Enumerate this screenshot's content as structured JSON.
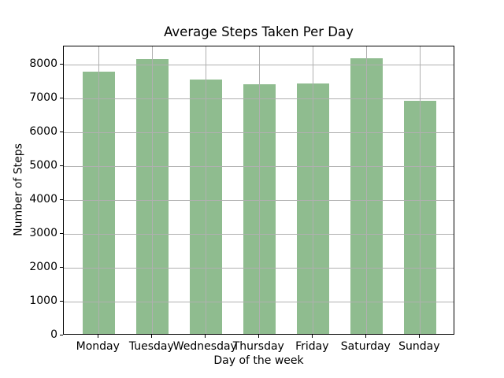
{
  "chart_data": {
    "type": "bar",
    "title": "Average Steps Taken Per Day",
    "xlabel": "Day of the week",
    "ylabel": "Number of Steps",
    "categories": [
      "Monday",
      "Tuesday",
      "Wednesday",
      "Thursday",
      "Friday",
      "Saturday",
      "Sunday"
    ],
    "values": [
      7750,
      8130,
      7520,
      7380,
      7410,
      8150,
      6880
    ],
    "yticks": [
      0,
      1000,
      2000,
      3000,
      4000,
      5000,
      6000,
      7000,
      8000
    ],
    "ylim": [
      0,
      8540
    ],
    "grid": true,
    "legend": "none",
    "bar_color": "#8fbc8f",
    "grid_color": "#b0b0b0",
    "spine_color": "#000000",
    "text_color": "#000000",
    "background_color": "#ffffff"
  }
}
